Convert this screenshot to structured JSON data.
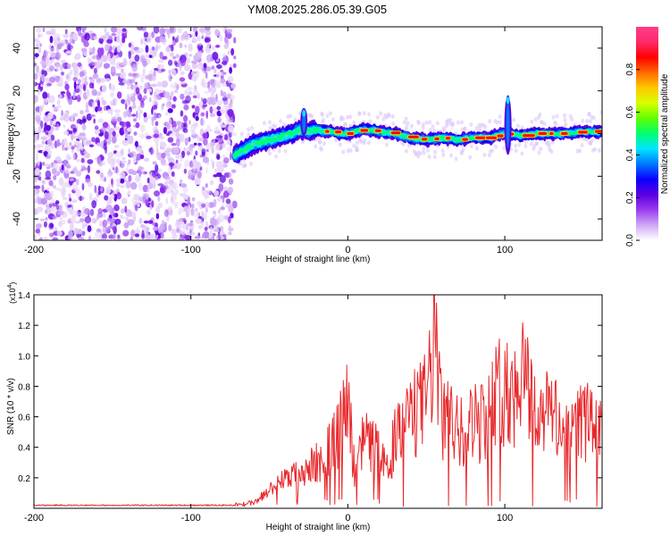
{
  "title": "YM08.2025.286.05.39.G05",
  "chart_data": [
    {
      "type": "heatmap",
      "title": "YM08.2025.286.05.39.G05",
      "xlabel": "Height of straight line (km)",
      "ylabel": "Frequency (Hz)",
      "xlim": [
        -200,
        162
      ],
      "ylim": [
        -50,
        50
      ],
      "x_ticks": [
        "-200",
        "-100",
        "0",
        "100"
      ],
      "y_ticks": [
        "-40",
        "-20",
        "0",
        "20",
        "40"
      ],
      "colorbar": {
        "label": "Normalized spectral amplitude",
        "range": [
          0,
          1
        ],
        "ticks": [
          "0.0",
          "0.2",
          "0.4",
          "0.6",
          "0.8"
        ],
        "colors": [
          "#ffffff",
          "#cfa8f5",
          "#9a3cf0",
          "#5a00e0",
          "#0a00ff",
          "#0077ff",
          "#00e5ff",
          "#00ff70",
          "#60ff00",
          "#d8ff00",
          "#ffc800",
          "#ff6a00",
          "#ff0000",
          "#ff2a6a",
          "#ff3c8c"
        ]
      },
      "noise_region_x": [
        -200,
        -72
      ],
      "signal_trace": {
        "x": [
          -72,
          -65,
          -60,
          -55,
          -50,
          -45,
          -40,
          -35,
          -30,
          -25,
          -20,
          -15,
          -10,
          -5,
          0,
          10,
          20,
          30,
          40,
          50,
          60,
          70,
          80,
          90,
          100,
          110,
          120,
          130,
          140,
          150,
          160
        ],
        "frequency": [
          -10,
          -7,
          -5,
          -4,
          -3,
          -2,
          -1,
          0,
          2,
          1,
          2,
          1,
          1,
          0,
          0,
          2,
          1,
          0,
          -2,
          -3,
          -2,
          -3,
          -2,
          -2,
          0,
          -1,
          0,
          0,
          0,
          1,
          1
        ]
      },
      "spikes": [
        {
          "x": -28,
          "freq_range": [
            -1,
            12
          ]
        },
        {
          "x": 102,
          "freq_range": [
            -10,
            18
          ]
        }
      ]
    },
    {
      "type": "line",
      "xlabel": "Height of straight line (km)",
      "ylabel": "SNR (10 * v/v)",
      "y_multiplier": "(x10",
      "y_multiplier_exp": "4",
      "xlim": [
        -200,
        162
      ],
      "ylim": [
        0,
        1.4
      ],
      "x_ticks": [
        "-200",
        "-100",
        "0",
        "100"
      ],
      "y_ticks": [
        "0.2",
        "0.4",
        "0.6",
        "0.8",
        "1.0",
        "1.2",
        "1.4"
      ],
      "color": "#e8282b",
      "series": [
        {
          "name": "SNR",
          "x": [
            -200,
            -160,
            -120,
            -80,
            -60,
            -50,
            -40,
            -30,
            -20,
            -10,
            -5,
            0,
            5,
            10,
            20,
            25,
            30,
            40,
            50,
            55,
            60,
            70,
            80,
            90,
            100,
            105,
            110,
            120,
            130,
            140,
            150,
            160
          ],
          "values": [
            0.02,
            0.02,
            0.02,
            0.02,
            0.05,
            0.15,
            0.25,
            0.3,
            0.4,
            0.55,
            0.7,
            0.9,
            0.3,
            0.6,
            0.5,
            0.35,
            0.6,
            0.8,
            0.95,
            1.42,
            0.8,
            0.7,
            0.75,
            0.85,
            1.15,
            0.9,
            1.3,
            0.8,
            0.85,
            0.6,
            0.8,
            0.65
          ]
        }
      ]
    }
  ]
}
